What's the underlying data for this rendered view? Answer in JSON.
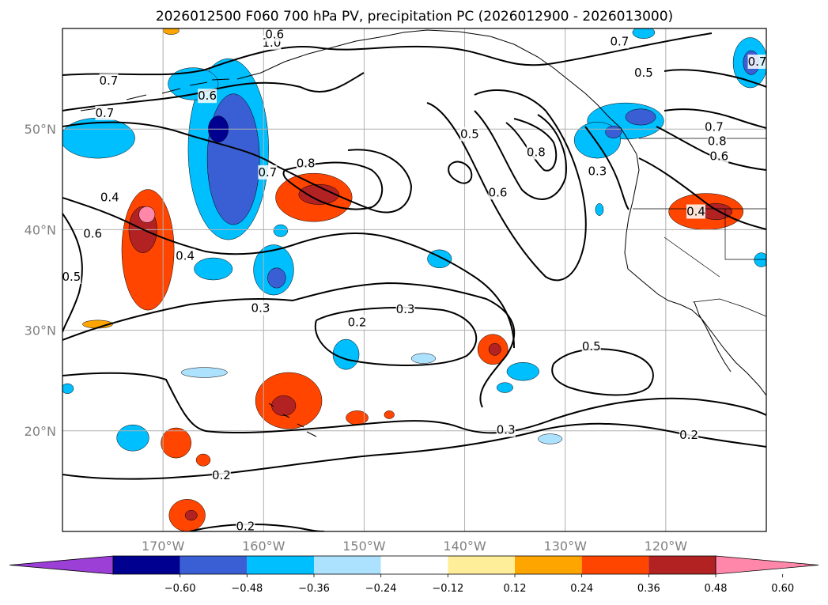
{
  "chart_data": {
    "type": "map",
    "title": "2026012500 F060 700 hPa PV, precipitation PC (2026012900 - 2026013000)",
    "projection": "plate-carree",
    "lon_range": [
      -180,
      -110
    ],
    "lat_range": [
      10,
      60
    ],
    "grid": true,
    "x_ticks": [
      {
        "lon": -170,
        "label": "170°W"
      },
      {
        "lon": -160,
        "label": "160°W"
      },
      {
        "lon": -150,
        "label": "150°W"
      },
      {
        "lon": -140,
        "label": "140°W"
      },
      {
        "lon": -130,
        "label": "130°W"
      },
      {
        "lon": -120,
        "label": "120°W"
      }
    ],
    "y_ticks": [
      {
        "lat": 20,
        "label": "20°N"
      },
      {
        "lat": 30,
        "label": "30°N"
      },
      {
        "lat": 40,
        "label": "40°N"
      },
      {
        "lat": 50,
        "label": "50°N"
      }
    ],
    "colorbar": {
      "orientation": "horizontal",
      "extend": "both",
      "levels": [
        -0.72,
        -0.6,
        -0.48,
        -0.36,
        -0.24,
        -0.12,
        0.12,
        0.24,
        0.36,
        0.48,
        0.6,
        0.72
      ],
      "colors": [
        "#9b3fd6",
        "#000090",
        "#3a5fd4",
        "#00bfff",
        "#ade2ff",
        "#ffffff",
        "#ffee99",
        "#ffa500",
        "#ff4500",
        "#b22222",
        "#ff88aa"
      ],
      "tick_labels": [
        "−0.60",
        "−0.48",
        "−0.36",
        "−0.24",
        "−0.12",
        "0.12",
        "0.24",
        "0.36",
        "0.48",
        "0.60"
      ],
      "tick_values": [
        -0.6,
        -0.48,
        -0.36,
        -0.24,
        -0.12,
        0.12,
        0.24,
        0.36,
        0.48,
        0.6
      ]
    },
    "pv_contour_labels": [
      {
        "text": "1.0",
        "lon": -159.2,
        "lat": 58.6
      },
      {
        "text": "0.7",
        "lon": -124.6,
        "lat": 58.7
      },
      {
        "text": "0.7",
        "lon": -175.4,
        "lat": 54.8
      },
      {
        "text": "0.6",
        "lon": -158.9,
        "lat": 59.4
      },
      {
        "text": "0.6",
        "lon": -165.6,
        "lat": 53.3
      },
      {
        "text": "0.5",
        "lon": -122.2,
        "lat": 55.6
      },
      {
        "text": "0.7",
        "lon": -175.8,
        "lat": 51.6
      },
      {
        "text": "0.5",
        "lon": -139.5,
        "lat": 49.5
      },
      {
        "text": "0.8",
        "lon": -132.9,
        "lat": 47.7
      },
      {
        "text": "0.8",
        "lon": -155.8,
        "lat": 46.6
      },
      {
        "text": "0.7",
        "lon": -159.6,
        "lat": 45.7
      },
      {
        "text": "0.3",
        "lon": -126.8,
        "lat": 45.8
      },
      {
        "text": "0.6",
        "lon": -136.7,
        "lat": 43.7
      },
      {
        "text": "0.4",
        "lon": -175.3,
        "lat": 43.2
      },
      {
        "text": "0.4",
        "lon": -117.0,
        "lat": 41.8
      },
      {
        "text": "0.6",
        "lon": -177.0,
        "lat": 39.6
      },
      {
        "text": "0.4",
        "lon": -167.8,
        "lat": 37.4
      },
      {
        "text": "0.5",
        "lon": -179.1,
        "lat": 35.3
      },
      {
        "text": "0.3",
        "lon": -160.3,
        "lat": 32.2
      },
      {
        "text": "0.3",
        "lon": -145.9,
        "lat": 32.1
      },
      {
        "text": "0.2",
        "lon": -150.7,
        "lat": 30.8
      },
      {
        "text": "0.5",
        "lon": -127.4,
        "lat": 28.4
      },
      {
        "text": "0.3",
        "lon": -135.9,
        "lat": 20.1
      },
      {
        "text": "0.2",
        "lon": -117.7,
        "lat": 19.6
      },
      {
        "text": "0.2",
        "lon": -164.2,
        "lat": 15.6
      },
      {
        "text": "0.2",
        "lon": -161.8,
        "lat": 10.5
      },
      {
        "text": "0.6",
        "lon": -114.7,
        "lat": 47.3
      },
      {
        "text": "0.8",
        "lon": -114.9,
        "lat": 48.8
      },
      {
        "text": "0.7",
        "lon": -115.2,
        "lat": 50.2
      },
      {
        "text": "0.7",
        "lon": -110.9,
        "lat": 56.7
      }
    ],
    "precip_anomaly_regions": [
      {
        "lon": -163.5,
        "lat": 48,
        "rlon": 4.0,
        "rlat": 9.0,
        "level": -0.36
      },
      {
        "lon": -163.0,
        "lat": 47,
        "rlon": 2.6,
        "rlat": 6.5,
        "level": -0.48
      },
      {
        "lon": -164.5,
        "lat": 50,
        "rlon": 1.0,
        "rlat": 1.3,
        "level": -0.6
      },
      {
        "lon": -167.0,
        "lat": 54.5,
        "rlon": 2.5,
        "rlat": 1.6,
        "level": -0.36
      },
      {
        "lon": -176.5,
        "lat": 49.1,
        "rlon": 3.7,
        "rlat": 2.0,
        "level": -0.36
      },
      {
        "lon": -155.0,
        "lat": 43.2,
        "rlon": 3.8,
        "rlat": 2.4,
        "level": 0.36
      },
      {
        "lon": -154.5,
        "lat": 43.5,
        "rlon": 2.0,
        "rlat": 1.0,
        "level": 0.48
      },
      {
        "lon": -171.5,
        "lat": 38,
        "rlon": 2.6,
        "rlat": 6.0,
        "level": 0.36
      },
      {
        "lon": -172.0,
        "lat": 40,
        "rlon": 1.4,
        "rlat": 2.3,
        "level": 0.48
      },
      {
        "lon": -171.6,
        "lat": 41.5,
        "rlon": 0.8,
        "rlat": 0.8,
        "level": 0.6
      },
      {
        "lon": -159.0,
        "lat": 36,
        "rlon": 2.0,
        "rlat": 2.5,
        "level": -0.36
      },
      {
        "lon": -158.7,
        "lat": 35.2,
        "rlon": 0.9,
        "rlat": 1.0,
        "level": -0.48
      },
      {
        "lon": -165.0,
        "lat": 36.1,
        "rlon": 1.9,
        "rlat": 1.1,
        "level": -0.36
      },
      {
        "lon": -142.5,
        "lat": 37.1,
        "rlon": 1.2,
        "rlat": 0.9,
        "level": -0.36
      },
      {
        "lon": -158.3,
        "lat": 39.9,
        "rlon": 0.7,
        "rlat": 0.6,
        "level": -0.36
      },
      {
        "lon": -157.5,
        "lat": 23,
        "rlon": 3.3,
        "rlat": 2.8,
        "level": 0.36
      },
      {
        "lon": -158.0,
        "lat": 22.5,
        "rlon": 1.2,
        "rlat": 1.0,
        "level": 0.48
      },
      {
        "lon": -150.7,
        "lat": 21.3,
        "rlon": 1.1,
        "rlat": 0.7,
        "level": 0.36
      },
      {
        "lon": -147.5,
        "lat": 21.6,
        "rlon": 0.5,
        "rlat": 0.4,
        "level": 0.36
      },
      {
        "lon": -168.7,
        "lat": 18.8,
        "rlon": 1.5,
        "rlat": 1.5,
        "level": 0.36
      },
      {
        "lon": -166.0,
        "lat": 17.1,
        "rlon": 0.7,
        "rlat": 0.6,
        "level": 0.36
      },
      {
        "lon": -167.6,
        "lat": 11.6,
        "rlon": 1.8,
        "rlat": 1.6,
        "level": 0.36
      },
      {
        "lon": -167.2,
        "lat": 11.6,
        "rlon": 0.6,
        "rlat": 0.5,
        "level": 0.48
      },
      {
        "lon": -137.2,
        "lat": 28.1,
        "rlon": 1.5,
        "rlat": 1.5,
        "level": 0.36
      },
      {
        "lon": -137.0,
        "lat": 28.1,
        "rlon": 0.6,
        "rlat": 0.6,
        "level": 0.48
      },
      {
        "lon": -151.8,
        "lat": 27.6,
        "rlon": 1.3,
        "rlat": 1.5,
        "level": -0.36
      },
      {
        "lon": -134.2,
        "lat": 25.9,
        "rlon": 1.6,
        "rlat": 0.9,
        "level": -0.36
      },
      {
        "lon": -136.0,
        "lat": 24.3,
        "rlon": 0.8,
        "rlat": 0.5,
        "level": -0.36
      },
      {
        "lon": -173.0,
        "lat": 19.3,
        "rlon": 1.6,
        "rlat": 1.3,
        "level": -0.36
      },
      {
        "lon": -179.5,
        "lat": 24.2,
        "rlon": 0.6,
        "rlat": 0.5,
        "level": -0.36
      },
      {
        "lon": -165.9,
        "lat": 25.8,
        "rlon": 2.3,
        "rlat": 0.5,
        "level": -0.24
      },
      {
        "lon": -144.1,
        "lat": 27.2,
        "rlon": 1.2,
        "rlat": 0.5,
        "level": -0.24
      },
      {
        "lon": -124.0,
        "lat": 50.8,
        "rlon": 3.8,
        "rlat": 1.8,
        "level": -0.36
      },
      {
        "lon": -122.5,
        "lat": 51.2,
        "rlon": 1.5,
        "rlat": 0.8,
        "level": -0.48
      },
      {
        "lon": -126.8,
        "lat": 48.9,
        "rlon": 2.3,
        "rlat": 1.8,
        "level": -0.36
      },
      {
        "lon": -125.2,
        "lat": 49.7,
        "rlon": 0.8,
        "rlat": 0.6,
        "level": -0.48
      },
      {
        "lon": -111.6,
        "lat": 56.6,
        "rlon": 1.7,
        "rlat": 2.5,
        "level": -0.36
      },
      {
        "lon": -111.5,
        "lat": 56.6,
        "rlon": 0.8,
        "rlat": 1.2,
        "level": -0.48
      },
      {
        "lon": -116.0,
        "lat": 41.8,
        "rlon": 3.7,
        "rlat": 1.8,
        "level": 0.36
      },
      {
        "lon": -115.0,
        "lat": 41.8,
        "rlon": 1.6,
        "rlat": 0.8,
        "level": 0.48
      },
      {
        "lon": -122.2,
        "lat": 59.6,
        "rlon": 1.1,
        "rlat": 0.6,
        "level": -0.36
      },
      {
        "lon": -126.6,
        "lat": 42.0,
        "rlon": 0.4,
        "rlat": 0.6,
        "level": -0.36
      },
      {
        "lon": -110.5,
        "lat": 37.0,
        "rlon": 0.7,
        "rlat": 0.7,
        "level": -0.36
      },
      {
        "lon": -131.5,
        "lat": 19.2,
        "rlon": 1.2,
        "rlat": 0.5,
        "level": -0.24
      },
      {
        "lon": -169.2,
        "lat": 59.8,
        "rlon": 0.8,
        "rlat": 0.4,
        "level": 0.24
      },
      {
        "lon": -176.5,
        "lat": 30.6,
        "rlon": 1.5,
        "rlat": 0.4,
        "level": 0.24
      }
    ]
  }
}
